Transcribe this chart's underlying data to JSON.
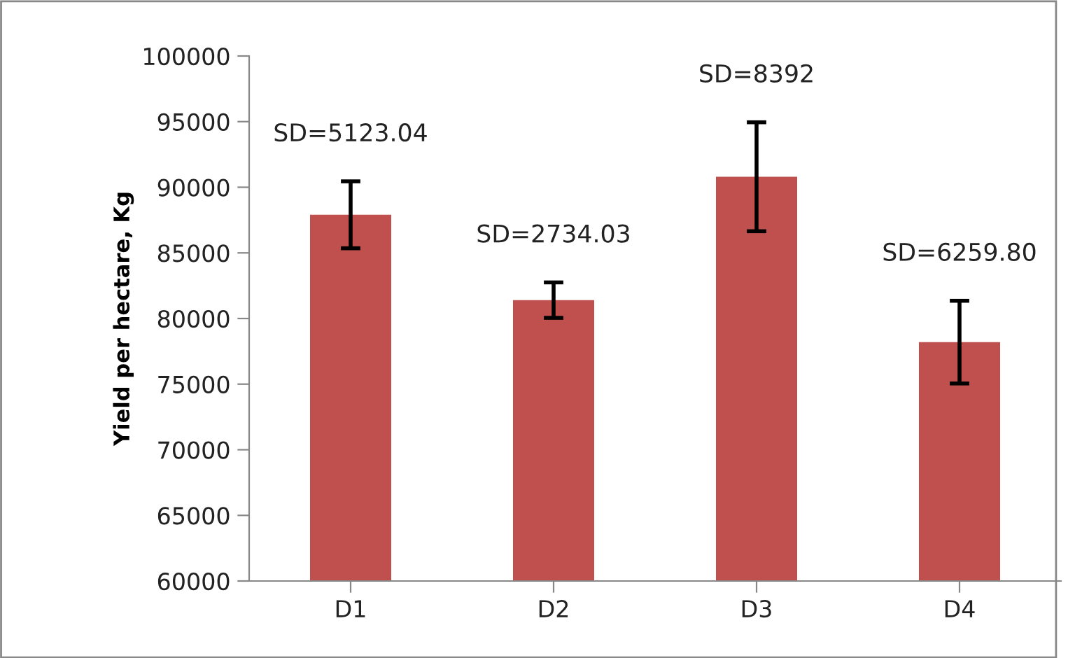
{
  "chart_data": {
    "type": "bar",
    "ylabel": "Yield per hectare, Kg",
    "categories": [
      "D1",
      "D2",
      "D3",
      "D4"
    ],
    "values": [
      87900,
      81400,
      90800,
      78200
    ],
    "errors": [
      2550,
      1350,
      4150,
      3150
    ],
    "color": "#c0504d",
    "ylim": [
      60000,
      100000
    ],
    "yticks": [
      60000,
      65000,
      70000,
      75000,
      80000,
      85000,
      90000,
      95000,
      100000
    ],
    "grid": false,
    "legend": false,
    "annotations": [
      "SD=5123.04",
      "SD=2734.03",
      "SD=8392",
      "SD=6259.80"
    ]
  }
}
